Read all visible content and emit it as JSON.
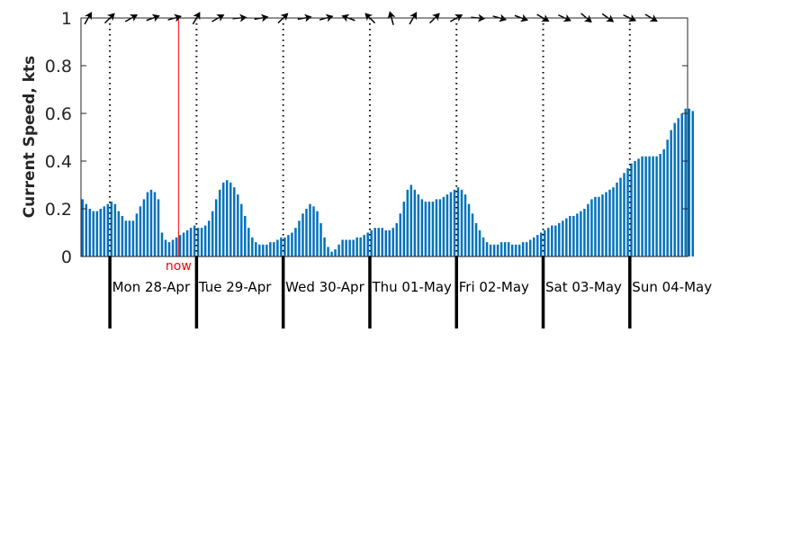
{
  "chart_data": {
    "type": "bar",
    "title": "",
    "xlabel": "",
    "ylabel": "Current Speed, kts",
    "ylim": [
      0,
      1
    ],
    "yticks": [
      0,
      0.2,
      0.4,
      0.6,
      0.8,
      1
    ],
    "ytick_labels": [
      "0",
      "0.2",
      "0.4",
      "0.6",
      "0.8",
      "1"
    ],
    "x_unit": "hours since Sun 27-Apr 20:00",
    "xlim": [
      0,
      168
    ],
    "grid": false,
    "bar_color": "#0072bd",
    "days": [
      {
        "label": "Mon 28-Apr",
        "start_hour": 8
      },
      {
        "label": "Tue 29-Apr",
        "start_hour": 32
      },
      {
        "label": "Wed 30-Apr",
        "start_hour": 56
      },
      {
        "label": "Thu 01-May",
        "start_hour": 80
      },
      {
        "label": "Fri 02-May",
        "start_hour": 104
      },
      {
        "label": "Sat 03-May",
        "start_hour": 128
      },
      {
        "label": "Sun 04-May",
        "start_hour": 152
      }
    ],
    "now": {
      "label": "now",
      "hour": 27,
      "color": "#ff0000"
    },
    "values": [
      0.24,
      0.22,
      0.2,
      0.19,
      0.19,
      0.2,
      0.21,
      0.22,
      0.23,
      0.22,
      0.19,
      0.17,
      0.15,
      0.15,
      0.15,
      0.18,
      0.21,
      0.24,
      0.27,
      0.28,
      0.27,
      0.24,
      0.1,
      0.07,
      0.06,
      0.07,
      0.08,
      0.09,
      0.1,
      0.11,
      0.12,
      0.13,
      0.12,
      0.12,
      0.13,
      0.15,
      0.19,
      0.24,
      0.28,
      0.31,
      0.32,
      0.31,
      0.29,
      0.26,
      0.22,
      0.17,
      0.12,
      0.08,
      0.06,
      0.05,
      0.05,
      0.05,
      0.06,
      0.06,
      0.07,
      0.08,
      0.08,
      0.09,
      0.1,
      0.12,
      0.15,
      0.18,
      0.2,
      0.22,
      0.21,
      0.19,
      0.14,
      0.08,
      0.04,
      0.02,
      0.03,
      0.05,
      0.07,
      0.07,
      0.07,
      0.07,
      0.08,
      0.08,
      0.09,
      0.1,
      0.11,
      0.12,
      0.12,
      0.12,
      0.11,
      0.11,
      0.12,
      0.14,
      0.18,
      0.23,
      0.28,
      0.3,
      0.28,
      0.26,
      0.24,
      0.23,
      0.23,
      0.23,
      0.24,
      0.24,
      0.25,
      0.26,
      0.27,
      0.28,
      0.29,
      0.28,
      0.26,
      0.22,
      0.18,
      0.14,
      0.11,
      0.08,
      0.06,
      0.05,
      0.05,
      0.05,
      0.06,
      0.06,
      0.06,
      0.05,
      0.05,
      0.05,
      0.06,
      0.06,
      0.07,
      0.08,
      0.09,
      0.1,
      0.11,
      0.12,
      0.13,
      0.13,
      0.14,
      0.15,
      0.16,
      0.17,
      0.17,
      0.18,
      0.19,
      0.2,
      0.22,
      0.24,
      0.25,
      0.25,
      0.26,
      0.27,
      0.28,
      0.29,
      0.31,
      0.33,
      0.35,
      0.37,
      0.39,
      0.4,
      0.41,
      0.42,
      0.42,
      0.42,
      0.42,
      0.42,
      0.43,
      0.45,
      0.49,
      0.53,
      0.56,
      0.58,
      0.6,
      0.62,
      0.62,
      0.61
    ],
    "direction_arrows": [
      {
        "hour": 2,
        "bearing_deg": 30
      },
      {
        "hour": 8,
        "bearing_deg": 45
      },
      {
        "hour": 14,
        "bearing_deg": 60
      },
      {
        "hour": 20,
        "bearing_deg": 70
      },
      {
        "hour": 26,
        "bearing_deg": 75
      },
      {
        "hour": 32,
        "bearing_deg": 30
      },
      {
        "hour": 38,
        "bearing_deg": 60
      },
      {
        "hour": 44,
        "bearing_deg": 85
      },
      {
        "hour": 50,
        "bearing_deg": 80
      },
      {
        "hour": 56,
        "bearing_deg": 45
      },
      {
        "hour": 62,
        "bearing_deg": 80
      },
      {
        "hour": 68,
        "bearing_deg": 75
      },
      {
        "hour": 74,
        "bearing_deg": 290
      },
      {
        "hour": 80,
        "bearing_deg": 315
      },
      {
        "hour": 86,
        "bearing_deg": 345
      },
      {
        "hour": 92,
        "bearing_deg": 30
      },
      {
        "hour": 98,
        "bearing_deg": 45
      },
      {
        "hour": 104,
        "bearing_deg": 60
      },
      {
        "hour": 110,
        "bearing_deg": 95
      },
      {
        "hour": 116,
        "bearing_deg": 105
      },
      {
        "hour": 122,
        "bearing_deg": 110
      },
      {
        "hour": 128,
        "bearing_deg": 120
      },
      {
        "hour": 134,
        "bearing_deg": 115
      },
      {
        "hour": 140,
        "bearing_deg": 130
      },
      {
        "hour": 146,
        "bearing_deg": 125
      },
      {
        "hour": 152,
        "bearing_deg": 115
      },
      {
        "hour": 158,
        "bearing_deg": 120
      }
    ]
  }
}
